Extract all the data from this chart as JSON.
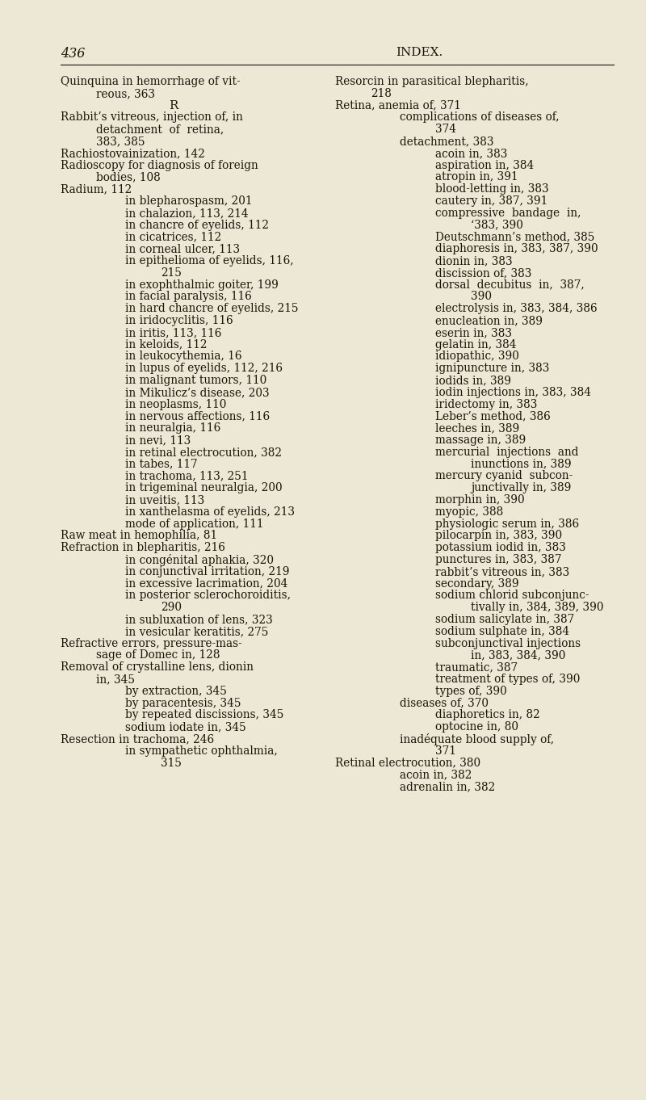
{
  "bg_color": "#ede8d5",
  "text_color": "#1a1508",
  "page_number": "436",
  "header": "INDEX.",
  "font_size_body": 9.8,
  "font_size_header": 11.0,
  "font_size_page": 11.5,
  "left_column": [
    [
      "Quinquina in hemorrhage of vit-",
      0
    ],
    [
      "reous, 363",
      1
    ],
    [
      "R",
      2
    ],
    [
      "Rabbit’s vitreous, injection of, in",
      0
    ],
    [
      "detachment  of  retina,",
      1
    ],
    [
      "383, 385",
      1
    ],
    [
      "Rachiostovainization, 142",
      0
    ],
    [
      "Radioscopy for diagnosis of foreign",
      0
    ],
    [
      "bodies, 108",
      1
    ],
    [
      "Radium, 112",
      0
    ],
    [
      "in blepharospasm, 201",
      2
    ],
    [
      "in chalazion, 113, 214",
      2
    ],
    [
      "in chancre of eyelids, 112",
      2
    ],
    [
      "in cicatrices, 112",
      2
    ],
    [
      "in corneal ulcer, 113",
      2
    ],
    [
      "in epithelioma of eyelids, 116,",
      2
    ],
    [
      "215",
      3
    ],
    [
      "in exophthalmic goiter, 199",
      2
    ],
    [
      "in facial paralysis, 116",
      2
    ],
    [
      "in hard chancre of eyelids, 215",
      2
    ],
    [
      "in iridocyclitis, 116",
      2
    ],
    [
      "in iritis, 113, 116",
      2
    ],
    [
      "in keloids, 112",
      2
    ],
    [
      "in leukocythemia, 16",
      2
    ],
    [
      "in lupus of eyelids, 112, 216",
      2
    ],
    [
      "in malignant tumors, 110",
      2
    ],
    [
      "in Mikulicz’s disease, 203",
      2
    ],
    [
      "in neoplasms, 110",
      2
    ],
    [
      "in nervous affections, 116",
      2
    ],
    [
      "in neuralgia, 116",
      2
    ],
    [
      "in nevi, 113",
      2
    ],
    [
      "in retinal electrocution, 382",
      2
    ],
    [
      "in tabes, 117",
      2
    ],
    [
      "in trachoma, 113, 251",
      2
    ],
    [
      "in trigeminal neuralgia, 200",
      2
    ],
    [
      "in uveitis, 113",
      2
    ],
    [
      "in xanthelasma of eyelids, 213",
      2
    ],
    [
      "mode of application, 111",
      2
    ],
    [
      "Raw meat in hemophilia, 81",
      0
    ],
    [
      "Refraction in blepharitis, 216",
      0
    ],
    [
      "in congénital aphakia, 320",
      2
    ],
    [
      "in conjunctival irritation, 219",
      2
    ],
    [
      "in excessive lacrimation, 204",
      2
    ],
    [
      "in posterior sclerochoroiditis,",
      2
    ],
    [
      "290",
      3
    ],
    [
      "in subluxation of lens, 323",
      2
    ],
    [
      "in vesicular keratitis, 275",
      2
    ],
    [
      "Refractive errors, pressure-mas-",
      0
    ],
    [
      "sage of Domec in, 128",
      1
    ],
    [
      "Removal of crystalline lens, dionin",
      0
    ],
    [
      "in, 345",
      1
    ],
    [
      "by extraction, 345",
      2
    ],
    [
      "by paracentesis, 345",
      2
    ],
    [
      "by repeated discissions, 345",
      2
    ],
    [
      "sodium iodate in, 345",
      2
    ],
    [
      "Resection in trachoma, 246",
      0
    ],
    [
      "in sympathetic ophthalmia,",
      2
    ],
    [
      "315",
      3
    ]
  ],
  "right_column": [
    [
      "Resorcin in parasitical blepharitis,",
      0
    ],
    [
      "218",
      1
    ],
    [
      "Retina, anemia of, 371",
      0
    ],
    [
      "complications of diseases of,",
      2
    ],
    [
      "374",
      3
    ],
    [
      "detachment, 383",
      2
    ],
    [
      "acoin in, 383",
      3
    ],
    [
      "aspiration in, 384",
      3
    ],
    [
      "atropin in, 391",
      3
    ],
    [
      "blood-letting in, 383",
      3
    ],
    [
      "cautery in, 387, 391",
      3
    ],
    [
      "compressive  bandage  in,",
      3
    ],
    [
      "‘383, 390",
      4
    ],
    [
      "Deutschmann’s method, 385",
      3
    ],
    [
      "diaphoresis in, 383, 387, 390",
      3
    ],
    [
      "dionin in, 383",
      3
    ],
    [
      "discission of, 383",
      3
    ],
    [
      "dorsal  decubitus  in,  387,",
      3
    ],
    [
      "390",
      4
    ],
    [
      "electrolysis in, 383, 384, 386",
      3
    ],
    [
      "enucleation in, 389",
      3
    ],
    [
      "eserin in, 383",
      3
    ],
    [
      "gelatin in, 384",
      3
    ],
    [
      "idiopathic, 390",
      3
    ],
    [
      "ignipuncture in, 383",
      3
    ],
    [
      "iodids in, 389",
      3
    ],
    [
      "iodin injections in, 383, 384",
      3
    ],
    [
      "iridectomy in, 383",
      3
    ],
    [
      "Leber’s method, 386",
      3
    ],
    [
      "leeches in, 389",
      3
    ],
    [
      "massage in, 389",
      3
    ],
    [
      "mercurial  injections  and",
      3
    ],
    [
      "inunctions in, 389",
      4
    ],
    [
      "mercury cyanid  subcon-",
      3
    ],
    [
      "junctivally in, 389",
      4
    ],
    [
      "morphin in, 390",
      3
    ],
    [
      "myopic, 388",
      3
    ],
    [
      "physiologic serum in, 386",
      3
    ],
    [
      "pilocarpin in, 383, 390",
      3
    ],
    [
      "potassium iodid in, 383",
      3
    ],
    [
      "punctures in, 383, 387",
      3
    ],
    [
      "rabbit’s vitreous in, 383",
      3
    ],
    [
      "secondary, 389",
      3
    ],
    [
      "sodium chlorid subconjunc-",
      3
    ],
    [
      "tivally in, 384, 389, 390",
      4
    ],
    [
      "sodium salicylate in, 387",
      3
    ],
    [
      "sodium sulphate in, 384",
      3
    ],
    [
      "subconjunctival injections",
      3
    ],
    [
      "in, 383, 384, 390",
      4
    ],
    [
      "traumatic, 387",
      3
    ],
    [
      "treatment of types of, 390",
      3
    ],
    [
      "types of, 390",
      3
    ],
    [
      "diseases of, 370",
      2
    ],
    [
      "diaphoretics in, 82",
      3
    ],
    [
      "optocine in, 80",
      3
    ],
    [
      "inadéquate blood supply of,",
      2
    ],
    [
      "371",
      3
    ],
    [
      "Retinal electrocution, 380",
      0
    ],
    [
      "acoin in, 382",
      2
    ],
    [
      "adrenalin in, 382",
      2
    ]
  ],
  "indent_levels": [
    0.0,
    0.055,
    0.1,
    0.155,
    0.21
  ]
}
